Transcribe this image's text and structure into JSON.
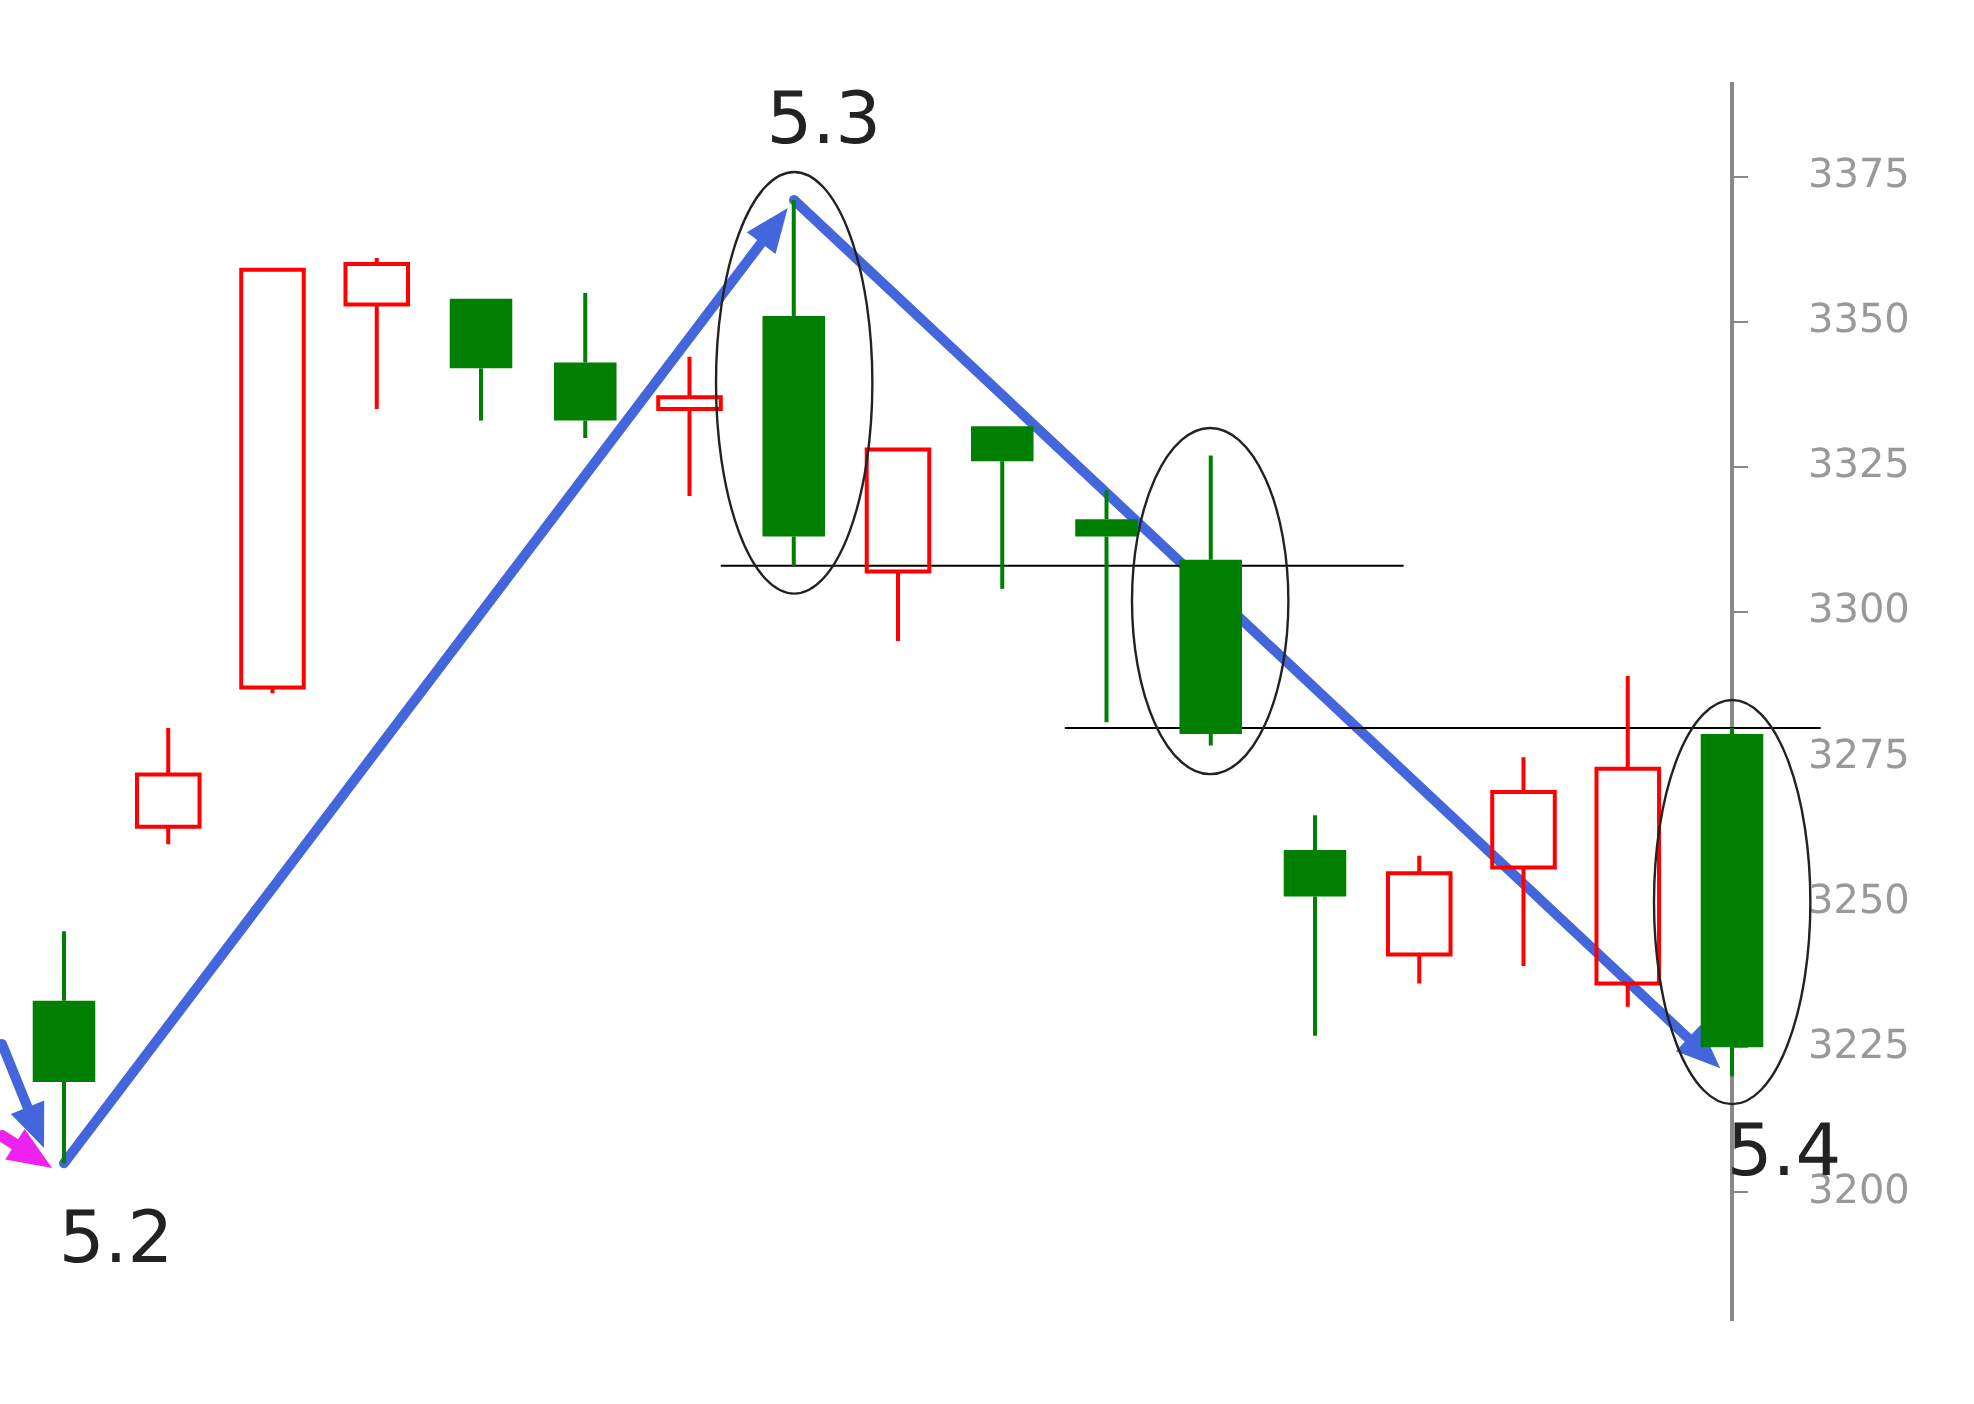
{
  "chart_data": {
    "type": "candlestick",
    "categories": [
      null,
      null,
      null,
      null,
      null,
      null,
      null,
      null,
      null,
      null,
      null,
      null,
      null,
      null,
      null,
      null,
      null
    ],
    "ohlc": [
      [
        3233,
        3245,
        3205,
        3219
      ],
      [
        3263,
        3280,
        3260,
        3272
      ],
      [
        3287,
        3359,
        3286,
        3359
      ],
      [
        3353,
        3361,
        3335,
        3360
      ],
      [
        3354,
        3354,
        3333,
        3342
      ],
      [
        3343,
        3355,
        3330,
        3333
      ],
      [
        3335,
        3344,
        3320,
        3337
      ],
      [
        3351,
        3371,
        3308,
        3313
      ],
      [
        3307,
        3328,
        3295,
        3328
      ],
      [
        3332,
        3332,
        3304,
        3326
      ],
      [
        3316,
        3321,
        3281,
        3313
      ],
      [
        3309,
        3327,
        3277,
        3279
      ],
      [
        3259,
        3265,
        3227,
        3251
      ],
      [
        3241,
        3258,
        3236,
        3255
      ],
      [
        3256,
        3275,
        3239,
        3269
      ],
      [
        3236,
        3289,
        3232,
        3273
      ],
      [
        3279,
        3280,
        3220,
        3225
      ]
    ],
    "colors": [
      "#008000",
      "#ff0000",
      "#ff0000",
      "#ff0000",
      "#008000",
      "#008000",
      "#ff0000",
      "#008000",
      "#ff0000",
      "#008000",
      "#008000",
      "#008000",
      "#008000",
      "#ff0000",
      "#ff0000",
      "#ff0000",
      "#008000"
    ],
    "ref_lines": [
      {
        "axis": "y",
        "value": 3308,
        "color": "#000000"
      },
      {
        "axis": "y",
        "value": 3280,
        "color": "#000000"
      }
    ],
    "annotations": [
      "5.2",
      "5.3",
      "5.4"
    ],
    "ylim": [
      3178,
      3391
    ],
    "yticks": [
      3200,
      3225,
      3250,
      3275,
      3300,
      3325,
      3350,
      3375
    ],
    "tick_labels": "y",
    "grid": false,
    "legend": false
  }
}
